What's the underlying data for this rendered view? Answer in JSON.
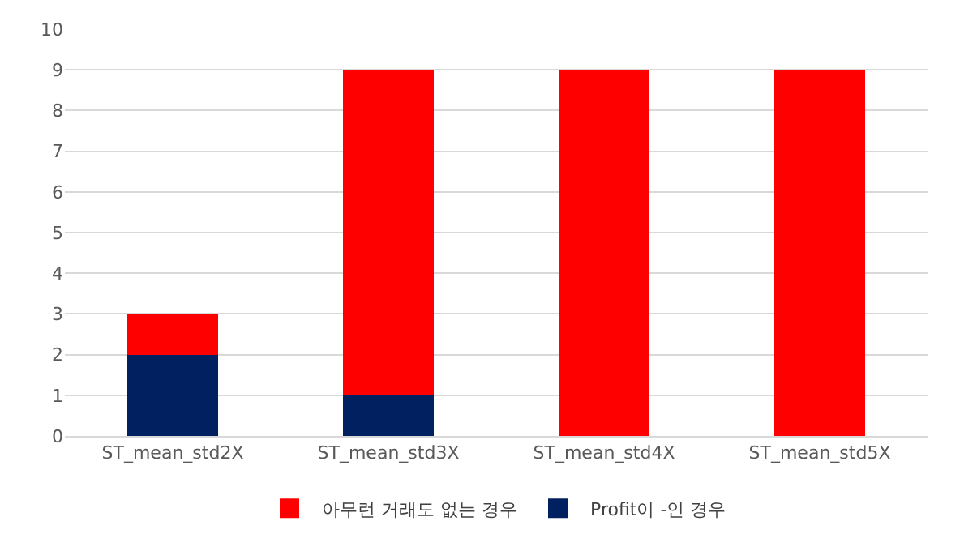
{
  "chart_data": {
    "type": "bar",
    "stacked": true,
    "categories": [
      "ST_mean_std2X",
      "ST_mean_std3X",
      "ST_mean_std4X",
      "ST_mean_std5X"
    ],
    "series": [
      {
        "name": "Profit이 -인 경우",
        "color": "#002060",
        "values": [
          2,
          1,
          0,
          0
        ]
      },
      {
        "name": "아무런 거래도 없는 경우",
        "color": "#ff0000",
        "values": [
          1,
          8,
          9,
          9
        ]
      }
    ],
    "ylim": [
      0,
      10
    ],
    "yticks": [
      0,
      1,
      2,
      3,
      4,
      5,
      6,
      7,
      8,
      9,
      10
    ],
    "grid": "y",
    "legend": "bottom"
  }
}
